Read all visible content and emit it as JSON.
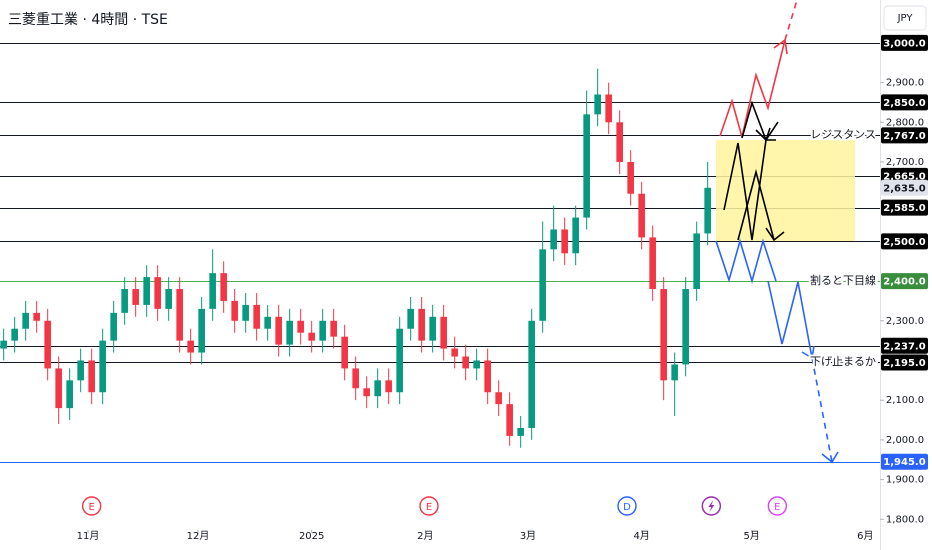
{
  "chart_data": {
    "type": "candlestick",
    "title": "三菱重工業 · 4時間 · TSE",
    "currency": "JPY",
    "up_color": "#089981",
    "down_color": "#f23645",
    "grid": false,
    "xlim": [
      7,
      247
    ],
    "ylim": [
      1773,
      3108
    ],
    "xticks": [
      {
        "value": 31,
        "label": "11月"
      },
      {
        "value": 61,
        "label": "12月"
      },
      {
        "value": 92,
        "label": "2025"
      },
      {
        "value": 123,
        "label": "2月"
      },
      {
        "value": 151,
        "label": "3月"
      },
      {
        "value": 182,
        "label": "4月"
      },
      {
        "value": 212,
        "label": "5月"
      },
      {
        "value": 243,
        "label": "6月"
      }
    ],
    "yticks": [
      {
        "value": 2900,
        "label": "2,900.0"
      },
      {
        "value": 2800,
        "label": "2,800.0"
      },
      {
        "value": 2700,
        "label": "2,700.0"
      },
      {
        "value": 2300,
        "label": "2,300.0"
      },
      {
        "value": 2100,
        "label": "2,100.0"
      },
      {
        "value": 2000,
        "label": "2,000.0"
      },
      {
        "value": 1900,
        "label": "1,900.0"
      },
      {
        "value": 1800,
        "label": "1,800.0"
      }
    ],
    "x": [
      8,
      11,
      14,
      17,
      20,
      23,
      26,
      29,
      32,
      35,
      38,
      41,
      44,
      47,
      50,
      53,
      56,
      59,
      62,
      65,
      68,
      71,
      74,
      77,
      80,
      83,
      86,
      89,
      92,
      95,
      98,
      101,
      104,
      107,
      110,
      113,
      116,
      119,
      122,
      125,
      128,
      131,
      134,
      137,
      140,
      143,
      146,
      149,
      152,
      155,
      158,
      161,
      164,
      167,
      170,
      173,
      176,
      179,
      182,
      185,
      188,
      191,
      194,
      197,
      200
    ],
    "open": [
      2230,
      2250,
      2280,
      2320,
      2300,
      2180,
      2080,
      2150,
      2200,
      2120,
      2250,
      2320,
      2380,
      2340,
      2410,
      2330,
      2380,
      2250,
      2220,
      2330,
      2420,
      2350,
      2300,
      2340,
      2280,
      2310,
      2240,
      2300,
      2270,
      2250,
      2300,
      2260,
      2180,
      2130,
      2110,
      2150,
      2120,
      2280,
      2330,
      2250,
      2310,
      2230,
      2210,
      2180,
      2200,
      2120,
      2090,
      2010,
      2030,
      2300,
      2480,
      2530,
      2470,
      2560,
      2820,
      2870,
      2800,
      2700,
      2620,
      2510,
      2380,
      2150,
      2190,
      2380,
      2520
    ],
    "high": [
      2280,
      2310,
      2350,
      2350,
      2330,
      2210,
      2180,
      2230,
      2230,
      2280,
      2350,
      2410,
      2410,
      2440,
      2440,
      2410,
      2410,
      2280,
      2360,
      2480,
      2450,
      2380,
      2370,
      2370,
      2340,
      2340,
      2330,
      2330,
      2300,
      2330,
      2330,
      2290,
      2210,
      2160,
      2180,
      2180,
      2310,
      2360,
      2360,
      2340,
      2340,
      2260,
      2240,
      2230,
      2230,
      2150,
      2120,
      2060,
      2330,
      2550,
      2590,
      2560,
      2590,
      2880,
      2935,
      2900,
      2830,
      2730,
      2650,
      2540,
      2410,
      2220,
      2410,
      2550,
      2700
    ],
    "low": [
      2200,
      2220,
      2250,
      2270,
      2150,
      2040,
      2050,
      2120,
      2090,
      2090,
      2220,
      2290,
      2310,
      2310,
      2300,
      2300,
      2220,
      2190,
      2190,
      2300,
      2320,
      2270,
      2270,
      2250,
      2250,
      2210,
      2210,
      2240,
      2220,
      2220,
      2230,
      2150,
      2100,
      2080,
      2080,
      2090,
      2090,
      2250,
      2220,
      2220,
      2200,
      2180,
      2150,
      2150,
      2090,
      2060,
      1985,
      1980,
      2000,
      2270,
      2450,
      2440,
      2440,
      2530,
      2790,
      2770,
      2670,
      2590,
      2480,
      2350,
      2100,
      2060,
      2160,
      2350,
      2490
    ],
    "close": [
      2250,
      2280,
      2320,
      2300,
      2180,
      2080,
      2150,
      2200,
      2120,
      2250,
      2320,
      2380,
      2340,
      2410,
      2330,
      2380,
      2250,
      2220,
      2330,
      2420,
      2350,
      2300,
      2340,
      2280,
      2310,
      2240,
      2300,
      2270,
      2250,
      2300,
      2260,
      2180,
      2130,
      2110,
      2150,
      2120,
      2280,
      2330,
      2250,
      2310,
      2230,
      2210,
      2180,
      2200,
      2120,
      2090,
      2010,
      2030,
      2300,
      2480,
      2530,
      2470,
      2560,
      2820,
      2870,
      2800,
      2700,
      2620,
      2510,
      2380,
      2150,
      2190,
      2380,
      2520,
      2635
    ],
    "levels": [
      {
        "value": 3000,
        "label": "3,000.0",
        "color": "#131722",
        "label_bg": "#000000",
        "label_fg": "#ffffff",
        "line": true
      },
      {
        "value": 2850,
        "label": "2,850.0",
        "color": "#131722",
        "label_bg": "#000000",
        "label_fg": "#ffffff",
        "line": true
      },
      {
        "value": 2767,
        "label": "2,767.0",
        "color": "#131722",
        "label_bg": "#000000",
        "label_fg": "#ffffff",
        "line": true
      },
      {
        "value": 2665,
        "label": "2,665.0",
        "color": "#131722",
        "label_bg": "#000000",
        "label_fg": "#ffffff",
        "line": true
      },
      {
        "value": 2635,
        "label": "2,635.0",
        "color": "#b2b5be",
        "label_bg": "#e0e3eb",
        "label_fg": "#131722",
        "line": false
      },
      {
        "value": 2585,
        "label": "2,585.0",
        "color": "#131722",
        "label_bg": "#000000",
        "label_fg": "#ffffff",
        "line": true
      },
      {
        "value": 2500,
        "label": "2,500.0",
        "color": "#131722",
        "label_bg": "#000000",
        "label_fg": "#ffffff",
        "line": true
      },
      {
        "value": 2400,
        "label": "2,400.0",
        "color": "#4caf50",
        "label_bg": "#388e3c",
        "label_fg": "#ffffff",
        "line": true
      },
      {
        "value": 2237,
        "label": "2,237.0",
        "color": "#131722",
        "label_bg": "#000000",
        "label_fg": "#ffffff",
        "line": true
      },
      {
        "value": 2195,
        "label": "2,195.0",
        "color": "#131722",
        "label_bg": "#000000",
        "label_fg": "#ffffff",
        "line": true
      },
      {
        "value": 1945,
        "label": "1,945.0",
        "color": "#2962ff",
        "label_bg": "#2962ff",
        "label_fg": "#ffffff",
        "line": true
      }
    ],
    "annotations": [
      "レジスタンス",
      "割ると下目線",
      "下げ止まるか"
    ],
    "events": [
      {
        "x": 32,
        "label": "E",
        "color": "#f23645"
      },
      {
        "x": 124,
        "label": "E",
        "color": "#f23645"
      },
      {
        "x": 178,
        "label": "D",
        "color": "#2962ff"
      },
      {
        "x": 201,
        "color": "#9c27b0"
      },
      {
        "x": 219,
        "label": "E",
        "color": "#e040fb"
      }
    ]
  }
}
